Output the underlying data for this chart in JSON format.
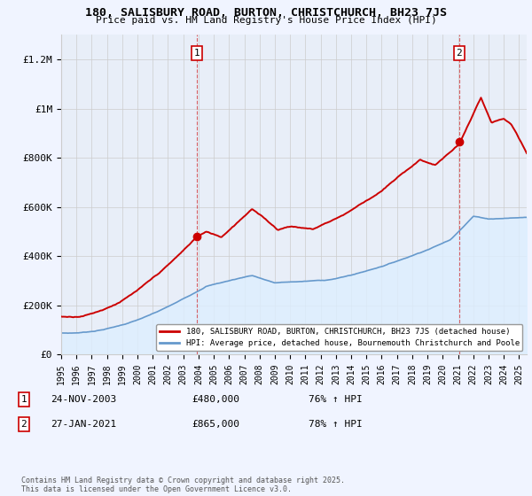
{
  "title1": "180, SALISBURY ROAD, BURTON, CHRISTCHURCH, BH23 7JS",
  "title2": "Price paid vs. HM Land Registry's House Price Index (HPI)",
  "ylabel_ticks": [
    "£0",
    "£200K",
    "£400K",
    "£600K",
    "£800K",
    "£1M",
    "£1.2M"
  ],
  "ytick_values": [
    0,
    200000,
    400000,
    600000,
    800000,
    1000000,
    1200000
  ],
  "ylim": [
    0,
    1300000
  ],
  "legend_line1": "180, SALISBURY ROAD, BURTON, CHRISTCHURCH, BH23 7JS (detached house)",
  "legend_line2": "HPI: Average price, detached house, Bournemouth Christchurch and Poole",
  "footnote": "Contains HM Land Registry data © Crown copyright and database right 2025.\nThis data is licensed under the Open Government Licence v3.0.",
  "marker1_label": "1",
  "marker1_date": "24-NOV-2003",
  "marker1_price": "£480,000",
  "marker1_hpi": "76% ↑ HPI",
  "marker1_x": 2003.9,
  "marker1_y": 480000,
  "marker2_label": "2",
  "marker2_date": "27-JAN-2021",
  "marker2_price": "£865,000",
  "marker2_hpi": "78% ↑ HPI",
  "marker2_x": 2021.07,
  "marker2_y": 865000,
  "red_color": "#cc0000",
  "blue_color": "#6699cc",
  "blue_fill": "#ddeeff",
  "grid_color": "#cccccc",
  "background_color": "#f0f4ff",
  "plot_bg_color": "#e8eef8",
  "x_start": 1995.0,
  "x_end": 2025.5,
  "xtick_years": [
    1995,
    1996,
    1997,
    1998,
    1999,
    2000,
    2001,
    2002,
    2003,
    2004,
    2005,
    2006,
    2007,
    2008,
    2009,
    2010,
    2011,
    2012,
    2013,
    2014,
    2015,
    2016,
    2017,
    2018,
    2019,
    2020,
    2021,
    2022,
    2023,
    2024,
    2025
  ]
}
